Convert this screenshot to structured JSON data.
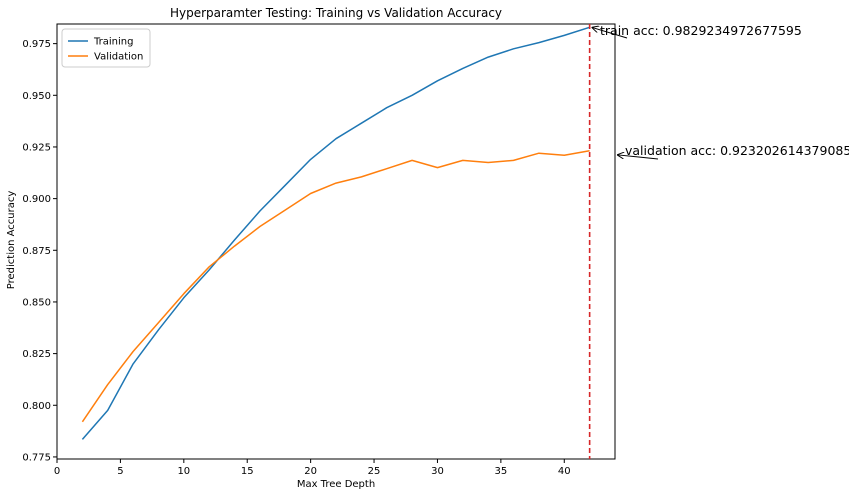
{
  "chart_data": {
    "type": "line",
    "title": "Hyperparamter Testing: Training vs Validation Accuracy",
    "xlabel": "Max Tree Depth",
    "ylabel": "Prediction Accuracy",
    "xlim": [
      0,
      44
    ],
    "ylim": [
      0.774,
      0.9845
    ],
    "xticks": [
      0,
      5,
      10,
      15,
      20,
      25,
      30,
      35,
      40
    ],
    "yticks": [
      0.775,
      0.8,
      0.825,
      0.85,
      0.875,
      0.9,
      0.925,
      0.95,
      0.975
    ],
    "grid": false,
    "legend": "top-left",
    "x": [
      2,
      4,
      6,
      8,
      10,
      12,
      14,
      16,
      18,
      20,
      22,
      24,
      26,
      28,
      30,
      32,
      34,
      36,
      38,
      40,
      42
    ],
    "series": [
      {
        "name": "Training",
        "color": "#1f77b4",
        "values": [
          0.7835,
          0.7975,
          0.82,
          0.8365,
          0.852,
          0.8655,
          0.88,
          0.894,
          0.9065,
          0.919,
          0.929,
          0.9365,
          0.944,
          0.95,
          0.957,
          0.963,
          0.9685,
          0.9725,
          0.9755,
          0.979,
          0.9829
        ]
      },
      {
        "name": "Validation",
        "color": "#ff7f0e",
        "values": [
          0.792,
          0.81,
          0.826,
          0.84,
          0.854,
          0.867,
          0.877,
          0.8865,
          0.8945,
          0.9025,
          0.9075,
          0.9105,
          0.9145,
          0.9185,
          0.915,
          0.9185,
          0.9175,
          0.9185,
          0.922,
          0.921,
          0.9232
        ]
      }
    ],
    "vline": {
      "x": 42,
      "color": "#d62728",
      "style": "dashed"
    },
    "annotations": [
      {
        "text": "train acc: 0.9829234972677595",
        "point": [
          42,
          0.9829
        ]
      },
      {
        "text": "validation acc: 0.923202614379085",
        "point": [
          44,
          0.9212
        ]
      }
    ]
  }
}
